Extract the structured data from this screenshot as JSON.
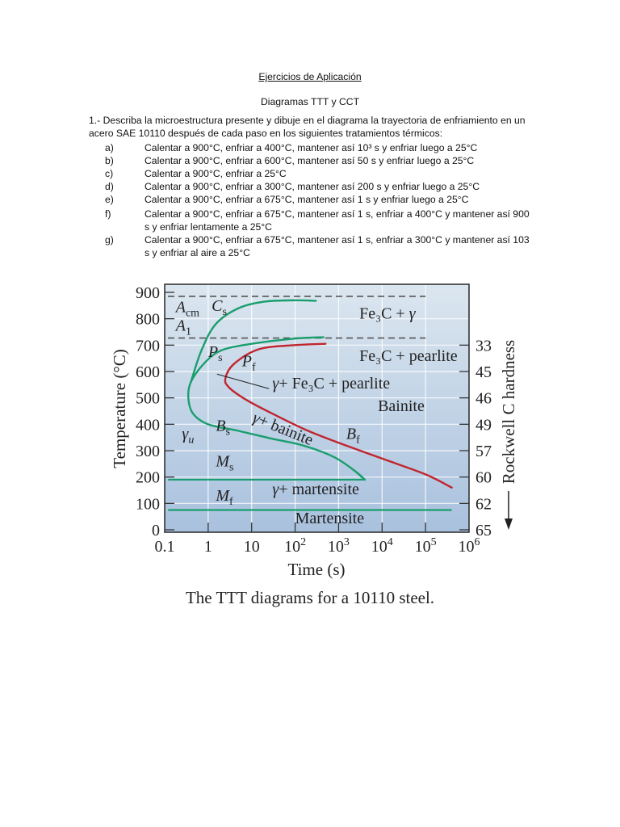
{
  "document": {
    "title": "Ejercicios de Aplicación",
    "subtitle": "Diagramas TTT y CCT",
    "intro": "1.- Describa la microestructura presente y dibuje en el diagrama la trayectoria de enfriamiento en un acero SAE 10110 después de cada paso en los siguientes tratamientos térmicos:",
    "items": [
      {
        "letter": "a)",
        "text": "Calentar a 900°C, enfriar a 400°C, mantener así 10³ s y enfriar luego a 25°C"
      },
      {
        "letter": "b)",
        "text": "Calentar a 900°C, enfriar a 600°C, mantener así 50 s y enfriar luego a 25°C"
      },
      {
        "letter": "c)",
        "text": "Calentar a 900°C, enfriar a 25°C"
      },
      {
        "letter": "d)",
        "text": "Calentar a 900°C, enfriar a 300°C, mantener así 200 s y enfriar luego a 25°C"
      },
      {
        "letter": "e)",
        "text": "Calentar a 900°C, enfriar a 675°C, mantener así 1 s y enfriar luego a 25°C"
      },
      {
        "letter": "f)",
        "text": "Calentar a 900°C, enfriar a 675°C, mantener así 1 s, enfriar a 400°C y mantener así 900 s y enfriar lentamente a 25°C"
      },
      {
        "letter": "g)",
        "text": "Calentar a 900°C, enfriar a 675°C, mantener así 1 s, enfriar a 300°C y mantener así 103 s y enfriar al aire a 25°C"
      }
    ],
    "caption": "The TTT diagrams for a 10110 steel."
  },
  "colors": {
    "plot_bg_top": "#dbe6ef",
    "plot_bg_bottom": "#a9c1de",
    "start_curve": "#1a9e6e",
    "finish_curve": "#c0262f",
    "grid": "#ffffff",
    "frame": "#333333",
    "dashed": "#555555"
  },
  "chart_data": {
    "type": "line",
    "title": "The TTT diagrams for a 10110 steel.",
    "xlabel": "Time (s)",
    "ylabel": "Temperature (°C)",
    "y2label": "Rockwell C hardness",
    "xscale": "log",
    "xlim": [
      0.1,
      1000000
    ],
    "ylim": [
      0,
      900
    ],
    "grid": true,
    "x_ticks": [
      "0.1",
      "1",
      "10",
      "10²",
      "10³",
      "10⁴",
      "10⁵",
      "10⁶"
    ],
    "y_ticks": [
      0,
      100,
      200,
      300,
      400,
      500,
      600,
      700,
      800,
      900
    ],
    "y2_ticks": [
      {
        "temp": 700,
        "label": "33"
      },
      {
        "temp": 600,
        "label": "45"
      },
      {
        "temp": 500,
        "label": "46"
      },
      {
        "temp": 400,
        "label": "49"
      },
      {
        "temp": 300,
        "label": "57"
      },
      {
        "temp": 200,
        "label": "60"
      },
      {
        "temp": 100,
        "label": "62"
      },
      {
        "temp": 0,
        "label": "65"
      }
    ],
    "reference_lines": [
      {
        "name": "Acm",
        "temp": 885,
        "style": "dashed",
        "x_end": 100000
      },
      {
        "name": "A1",
        "temp": 727,
        "style": "dashed",
        "x_end": 100000
      },
      {
        "name": "Ms",
        "temp": 190,
        "style": "solid",
        "x_start": 0.12,
        "x_end": 4000
      },
      {
        "name": "Mf",
        "temp": 75,
        "style": "solid",
        "x_start": 0.12,
        "x_end": 400000
      }
    ],
    "series": [
      {
        "name": "Cs (proeutectoid cementite start)",
        "color": "start",
        "points": [
          [
            0.4,
            560
          ],
          [
            0.7,
            680
          ],
          [
            1.5,
            780
          ],
          [
            5,
            840
          ],
          [
            20,
            865
          ],
          [
            100,
            870
          ],
          [
            300,
            868
          ]
        ]
      },
      {
        "name": "Ps / Bs (transformation start)",
        "color": "start",
        "points": [
          [
            450,
            730
          ],
          [
            100,
            725
          ],
          [
            10,
            705
          ],
          [
            2,
            680
          ],
          [
            0.8,
            630
          ],
          [
            0.4,
            560
          ],
          [
            0.35,
            500
          ],
          [
            0.45,
            440
          ],
          [
            1,
            400
          ],
          [
            5,
            375
          ],
          [
            30,
            345
          ],
          [
            150,
            320
          ],
          [
            800,
            275
          ],
          [
            2500,
            220
          ],
          [
            4000,
            190
          ]
        ]
      },
      {
        "name": "Pf / Bf (transformation finish)",
        "color": "finish",
        "points": [
          [
            500,
            705
          ],
          [
            100,
            700
          ],
          [
            15,
            685
          ],
          [
            4,
            630
          ],
          [
            2.5,
            575
          ],
          [
            3,
            540
          ],
          [
            8,
            490
          ],
          [
            40,
            430
          ],
          [
            200,
            375
          ],
          [
            1000,
            330
          ],
          [
            10000,
            270
          ],
          [
            100000,
            210
          ],
          [
            400000,
            160
          ]
        ]
      }
    ],
    "annotations": [
      {
        "text": "A_cm",
        "x": 0.18,
        "temp": 825
      },
      {
        "text": "A_1",
        "x": 0.18,
        "temp": 755
      },
      {
        "text": "C_s",
        "x": 1.2,
        "temp": 830
      },
      {
        "text": "P_s",
        "x": 1,
        "temp": 655
      },
      {
        "text": "P_f",
        "x": 6,
        "temp": 620
      },
      {
        "text": "γ + Fe₃C + pearlite",
        "x": 30,
        "temp": 535
      },
      {
        "text": "Fe₃C + γ",
        "x": 3000,
        "temp": 800
      },
      {
        "text": "Fe₃C + pearlite",
        "x": 3000,
        "temp": 640
      },
      {
        "text": "Bainite",
        "x": 8000,
        "temp": 450
      },
      {
        "text": "γ + bainite",
        "x": 10,
        "temp": 410
      },
      {
        "text": "B_s",
        "x": 1.5,
        "temp": 375
      },
      {
        "text": "B_f",
        "x": 1500,
        "temp": 345
      },
      {
        "text": "γ_u",
        "x": 0.25,
        "temp": 345
      },
      {
        "text": "M_s",
        "x": 1.5,
        "temp": 240
      },
      {
        "text": "M_f",
        "x": 1.5,
        "temp": 110
      },
      {
        "text": "γ + martensite",
        "x": 30,
        "temp": 135
      },
      {
        "text": "Martensite",
        "x": 100,
        "temp": 25
      }
    ]
  }
}
